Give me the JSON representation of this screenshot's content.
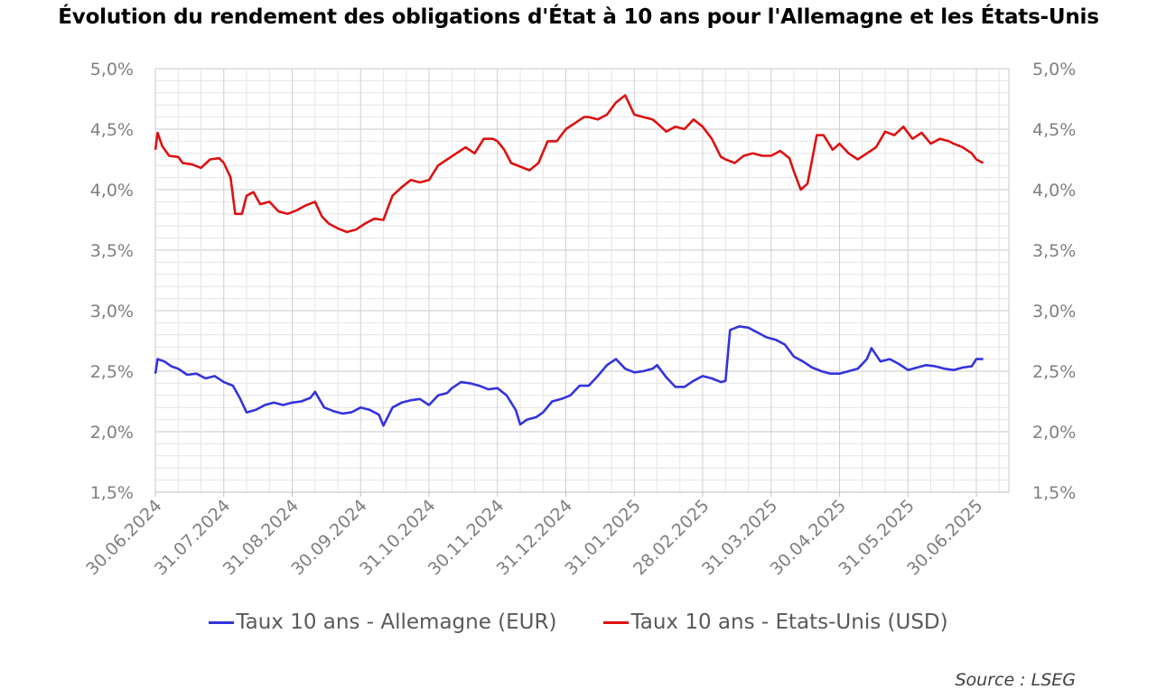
{
  "chart_data": {
    "type": "line",
    "title": "Évolution du rendement des obligations d'État à 10 ans pour l'Allemagne et les États-Unis",
    "source": "Source : LSEG",
    "ylim": [
      1.5,
      5.0
    ],
    "y_ticks": [
      "1,5%",
      "2,0%",
      "2,5%",
      "3,0%",
      "3,5%",
      "4,0%",
      "4,5%",
      "5,0%"
    ],
    "x_ticks": [
      "30.06.2024",
      "31.07.2024",
      "31.08.2024",
      "30.09.2024",
      "31.10.2024",
      "30.11.2024",
      "31.12.2024",
      "31.01.2025",
      "28.02.2025",
      "31.03.2025",
      "30.04.2025",
      "31.05.2025",
      "30.06.2025"
    ],
    "grid": true,
    "legend_position": "bottom",
    "series": [
      {
        "name": "Taux 10 ans - Allemagne (EUR)",
        "color": "#3333dd",
        "points": [
          [
            0,
            2.48
          ],
          [
            0.1,
            2.6
          ],
          [
            0.4,
            2.58
          ],
          [
            0.7,
            2.54
          ],
          [
            1.0,
            2.52
          ],
          [
            1.4,
            2.47
          ],
          [
            1.8,
            2.48
          ],
          [
            2.2,
            2.44
          ],
          [
            2.6,
            2.46
          ],
          [
            3.0,
            2.41
          ],
          [
            3.4,
            2.38
          ],
          [
            3.7,
            2.28
          ],
          [
            4.0,
            2.16
          ],
          [
            4.4,
            2.18
          ],
          [
            4.8,
            2.22
          ],
          [
            5.2,
            2.24
          ],
          [
            5.6,
            2.22
          ],
          [
            6.0,
            2.24
          ],
          [
            6.4,
            2.25
          ],
          [
            6.8,
            2.28
          ],
          [
            7.0,
            2.33
          ],
          [
            7.4,
            2.2
          ],
          [
            7.8,
            2.17
          ],
          [
            8.2,
            2.15
          ],
          [
            8.6,
            2.16
          ],
          [
            9.0,
            2.2
          ],
          [
            9.4,
            2.18
          ],
          [
            9.8,
            2.14
          ],
          [
            10.0,
            2.05
          ],
          [
            10.4,
            2.2
          ],
          [
            10.8,
            2.24
          ],
          [
            11.2,
            2.26
          ],
          [
            11.6,
            2.27
          ],
          [
            12.0,
            2.22
          ],
          [
            12.4,
            2.3
          ],
          [
            12.8,
            2.32
          ],
          [
            13.0,
            2.36
          ],
          [
            13.4,
            2.41
          ],
          [
            13.8,
            2.4
          ],
          [
            14.2,
            2.38
          ],
          [
            14.6,
            2.35
          ],
          [
            15.0,
            2.36
          ],
          [
            15.4,
            2.3
          ],
          [
            15.8,
            2.18
          ],
          [
            16.0,
            2.06
          ],
          [
            16.3,
            2.1
          ],
          [
            16.7,
            2.12
          ],
          [
            17.0,
            2.16
          ],
          [
            17.4,
            2.25
          ],
          [
            17.8,
            2.27
          ],
          [
            18.2,
            2.3
          ],
          [
            18.6,
            2.38
          ],
          [
            19.0,
            2.38
          ],
          [
            19.4,
            2.46
          ],
          [
            19.8,
            2.55
          ],
          [
            20.2,
            2.6
          ],
          [
            20.6,
            2.52
          ],
          [
            21.0,
            2.49
          ],
          [
            21.4,
            2.5
          ],
          [
            21.8,
            2.52
          ],
          [
            22.0,
            2.55
          ],
          [
            22.4,
            2.45
          ],
          [
            22.8,
            2.37
          ],
          [
            23.2,
            2.37
          ],
          [
            23.6,
            2.42
          ],
          [
            24.0,
            2.46
          ],
          [
            24.4,
            2.44
          ],
          [
            24.8,
            2.41
          ],
          [
            25.0,
            2.42
          ],
          [
            25.2,
            2.84
          ],
          [
            25.6,
            2.87
          ],
          [
            26.0,
            2.86
          ],
          [
            26.4,
            2.82
          ],
          [
            26.8,
            2.78
          ],
          [
            27.2,
            2.76
          ],
          [
            27.6,
            2.72
          ],
          [
            28.0,
            2.62
          ],
          [
            28.4,
            2.58
          ],
          [
            28.8,
            2.53
          ],
          [
            29.2,
            2.5
          ],
          [
            29.6,
            2.48
          ],
          [
            30.0,
            2.48
          ],
          [
            30.4,
            2.5
          ],
          [
            30.8,
            2.52
          ],
          [
            31.2,
            2.6
          ],
          [
            31.4,
            2.69
          ],
          [
            31.8,
            2.58
          ],
          [
            32.2,
            2.6
          ],
          [
            32.6,
            2.56
          ],
          [
            33.0,
            2.51
          ],
          [
            33.4,
            2.53
          ],
          [
            33.8,
            2.55
          ],
          [
            34.2,
            2.54
          ],
          [
            34.6,
            2.52
          ],
          [
            35.0,
            2.51
          ],
          [
            35.4,
            2.53
          ],
          [
            35.8,
            2.54
          ],
          [
            36.0,
            2.6
          ],
          [
            36.3,
            2.6
          ]
        ]
      },
      {
        "name": "Taux 10 ans - Etats-Unis (USD)",
        "color": "#dd1111",
        "points": [
          [
            0,
            4.33
          ],
          [
            0.1,
            4.47
          ],
          [
            0.3,
            4.36
          ],
          [
            0.6,
            4.28
          ],
          [
            1.0,
            4.27
          ],
          [
            1.2,
            4.22
          ],
          [
            1.6,
            4.21
          ],
          [
            2.0,
            4.18
          ],
          [
            2.4,
            4.25
          ],
          [
            2.8,
            4.26
          ],
          [
            3.0,
            4.22
          ],
          [
            3.3,
            4.1
          ],
          [
            3.5,
            3.8
          ],
          [
            3.8,
            3.8
          ],
          [
            4.0,
            3.95
          ],
          [
            4.3,
            3.98
          ],
          [
            4.6,
            3.88
          ],
          [
            5.0,
            3.9
          ],
          [
            5.4,
            3.82
          ],
          [
            5.8,
            3.8
          ],
          [
            6.2,
            3.83
          ],
          [
            6.6,
            3.87
          ],
          [
            7.0,
            3.9
          ],
          [
            7.3,
            3.78
          ],
          [
            7.6,
            3.72
          ],
          [
            8.0,
            3.68
          ],
          [
            8.4,
            3.65
          ],
          [
            8.8,
            3.67
          ],
          [
            9.2,
            3.72
          ],
          [
            9.6,
            3.76
          ],
          [
            10.0,
            3.75
          ],
          [
            10.4,
            3.95
          ],
          [
            10.8,
            4.02
          ],
          [
            11.2,
            4.08
          ],
          [
            11.6,
            4.06
          ],
          [
            12.0,
            4.08
          ],
          [
            12.4,
            4.2
          ],
          [
            12.8,
            4.25
          ],
          [
            13.2,
            4.3
          ],
          [
            13.6,
            4.35
          ],
          [
            14.0,
            4.3
          ],
          [
            14.4,
            4.42
          ],
          [
            14.8,
            4.42
          ],
          [
            15.0,
            4.4
          ],
          [
            15.3,
            4.33
          ],
          [
            15.6,
            4.22
          ],
          [
            16.0,
            4.19
          ],
          [
            16.4,
            4.16
          ],
          [
            16.8,
            4.22
          ],
          [
            17.2,
            4.4
          ],
          [
            17.6,
            4.4
          ],
          [
            18.0,
            4.5
          ],
          [
            18.4,
            4.55
          ],
          [
            18.8,
            4.6
          ],
          [
            19.0,
            4.6
          ],
          [
            19.4,
            4.58
          ],
          [
            19.8,
            4.62
          ],
          [
            20.2,
            4.72
          ],
          [
            20.6,
            4.78
          ],
          [
            21.0,
            4.62
          ],
          [
            21.4,
            4.6
          ],
          [
            21.8,
            4.58
          ],
          [
            22.0,
            4.55
          ],
          [
            22.4,
            4.48
          ],
          [
            22.8,
            4.52
          ],
          [
            23.2,
            4.5
          ],
          [
            23.6,
            4.58
          ],
          [
            24.0,
            4.52
          ],
          [
            24.4,
            4.42
          ],
          [
            24.8,
            4.27
          ],
          [
            25.0,
            4.25
          ],
          [
            25.4,
            4.22
          ],
          [
            25.8,
            4.28
          ],
          [
            26.2,
            4.3
          ],
          [
            26.6,
            4.28
          ],
          [
            27.0,
            4.28
          ],
          [
            27.4,
            4.32
          ],
          [
            27.8,
            4.26
          ],
          [
            28.0,
            4.15
          ],
          [
            28.3,
            4.0
          ],
          [
            28.6,
            4.05
          ],
          [
            28.8,
            4.25
          ],
          [
            29.0,
            4.45
          ],
          [
            29.3,
            4.45
          ],
          [
            29.7,
            4.33
          ],
          [
            30.0,
            4.38
          ],
          [
            30.4,
            4.3
          ],
          [
            30.8,
            4.25
          ],
          [
            31.2,
            4.3
          ],
          [
            31.6,
            4.35
          ],
          [
            32.0,
            4.48
          ],
          [
            32.4,
            4.45
          ],
          [
            32.8,
            4.52
          ],
          [
            33.2,
            4.42
          ],
          [
            33.6,
            4.47
          ],
          [
            34.0,
            4.38
          ],
          [
            34.4,
            4.42
          ],
          [
            34.8,
            4.4
          ],
          [
            35.0,
            4.38
          ],
          [
            35.4,
            4.35
          ],
          [
            35.8,
            4.3
          ],
          [
            36.0,
            4.25
          ],
          [
            36.3,
            4.22
          ]
        ]
      }
    ]
  }
}
